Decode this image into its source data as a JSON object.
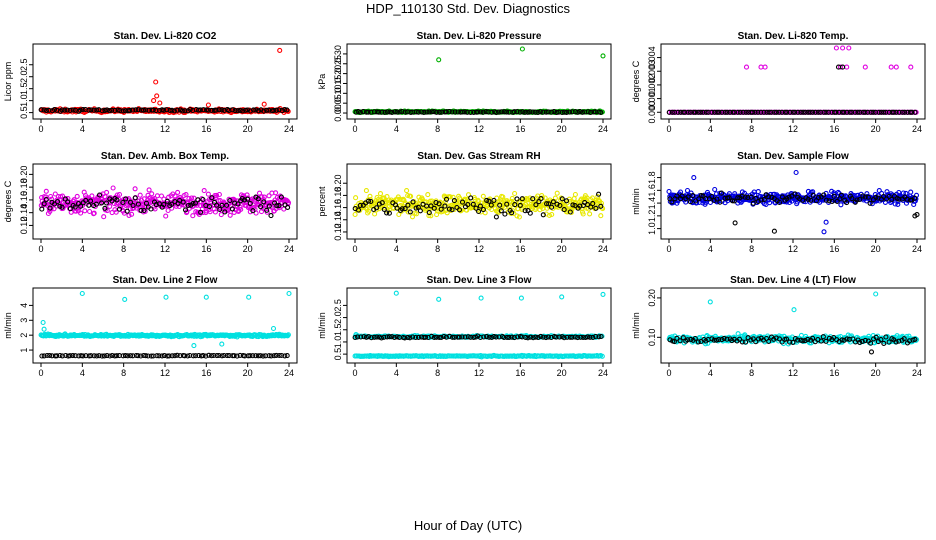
{
  "page": {
    "title": "HDP_110130  Std. Dev. Diagnostics",
    "xlabel": "Hour of Day (UTC)"
  },
  "chart_data": [
    {
      "type": "scatter",
      "title": "Stan. Dev. Li-820 CO2",
      "ylabel": "Licor ppm",
      "xlim": [
        0,
        24
      ],
      "ylim": [
        0.4,
        3.2
      ],
      "xticks": [
        "0",
        "4",
        "8",
        "12",
        "16",
        "20",
        "24"
      ],
      "yticks": [
        "0.5",
        "1.0",
        "1.5",
        "2.0",
        "2.5"
      ],
      "series": [
        {
          "color": "#ff0000",
          "base": 0.58,
          "spread": 0.12,
          "n": 300,
          "outliers": [
            [
              11.1,
              1.78
            ],
            [
              11.2,
              1.2
            ],
            [
              10.9,
              1.0
            ],
            [
              11.5,
              0.9
            ],
            [
              16.2,
              0.82
            ],
            [
              21.6,
              0.85
            ],
            [
              23.1,
              3.1
            ]
          ]
        },
        {
          "color": "#000000",
          "base": 0.6,
          "spread": 0.06,
          "n": 95,
          "outliers": []
        }
      ]
    },
    {
      "type": "scatter",
      "title": "Stan. Dev. Li-820 Pressure",
      "ylabel": "kPa",
      "xlim": [
        0,
        24
      ],
      "ylim": [
        -0.01,
        0.33
      ],
      "xticks": [
        "0",
        "4",
        "8",
        "12",
        "16",
        "20",
        "24"
      ],
      "yticks": [
        "0.00",
        "0.05",
        "0.10",
        "0.15",
        "0.20",
        "0.25",
        "0.30"
      ],
      "series": [
        {
          "color": "#00b000",
          "base": 0.006,
          "spread": 0.006,
          "n": 300,
          "outliers": [
            [
              8.1,
              0.27
            ],
            [
              16.2,
              0.325
            ],
            [
              24,
              0.29
            ]
          ]
        },
        {
          "color": "#000000",
          "base": 0.005,
          "spread": 0.004,
          "n": 95,
          "outliers": []
        }
      ]
    },
    {
      "type": "scatter",
      "title": "Stan. Dev. Li-820 Temp.",
      "ylabel": "degrees C",
      "xlim": [
        0,
        24
      ],
      "ylim": [
        -0.0002,
        0.0047
      ],
      "xticks": [
        "0",
        "4",
        "8",
        "12",
        "16",
        "20",
        "24"
      ],
      "yticks": [
        "0.000",
        "0.001",
        "0.002",
        "0.003",
        "0.004"
      ],
      "series": [
        {
          "color": "#e000e0",
          "base": 0.0,
          "spread": 0.0,
          "n": 160,
          "outliers": [
            [
              7.5,
              0.0033
            ],
            [
              8.9,
              0.0033
            ],
            [
              9.3,
              0.0033
            ],
            [
              16.2,
              0.0047
            ],
            [
              16.6,
              0.0033
            ],
            [
              17.2,
              0.0033
            ],
            [
              17.4,
              0.0047
            ],
            [
              19.0,
              0.0033
            ],
            [
              21.5,
              0.0033
            ],
            [
              22.0,
              0.0033
            ],
            [
              23.4,
              0.0033
            ],
            [
              16.8,
              0.0047
            ]
          ]
        },
        {
          "color": "#000000",
          "base": 0.0,
          "spread": 0.0,
          "n": 95,
          "outliers": [
            [
              16.4,
              0.0033
            ],
            [
              16.8,
              0.0033
            ]
          ]
        }
      ]
    },
    {
      "type": "scatter",
      "title": "Stan. Dev. Amb. Box Temp.",
      "ylabel": "degrees C",
      "xlim": [
        0,
        24
      ],
      "ylim": [
        0.105,
        0.21
      ],
      "xticks": [
        "0",
        "4",
        "8",
        "12",
        "16",
        "20",
        "24"
      ],
      "yticks": [
        "0.12",
        "0.14",
        "0.16",
        "0.18",
        "0.20"
      ],
      "series": [
        {
          "color": "#e000e0",
          "base": 0.155,
          "spread": 0.028,
          "n": 420,
          "outliers": []
        },
        {
          "color": "#000000",
          "base": 0.152,
          "spread": 0.022,
          "n": 95,
          "outliers": []
        }
      ]
    },
    {
      "type": "scatter",
      "title": "Stan. Dev. Gas Stream RH",
      "ylabel": "percent",
      "xlim": [
        0,
        24
      ],
      "ylim": [
        0.115,
        0.225
      ],
      "xticks": [
        "0",
        "4",
        "8",
        "12",
        "16",
        "20",
        "24"
      ],
      "yticks": [
        "0.12",
        "0.14",
        "0.16",
        "0.18",
        "0.20"
      ],
      "series": [
        {
          "color": "#e8e800",
          "base": 0.165,
          "spread": 0.028,
          "n": 420,
          "outliers": []
        },
        {
          "color": "#000000",
          "base": 0.163,
          "spread": 0.024,
          "n": 95,
          "outliers": []
        }
      ]
    },
    {
      "type": "scatter",
      "title": "Stan. Dev. Sample Flow",
      "ylabel": "ml/min",
      "xlim": [
        0,
        24
      ],
      "ylim": [
        0.9,
        1.95
      ],
      "xticks": [
        "0",
        "4",
        "8",
        "12",
        "16",
        "20",
        "24"
      ],
      "yticks": [
        "1.0",
        "1.2",
        "1.4",
        "1.6",
        "1.8"
      ],
      "series": [
        {
          "color": "#0000e0",
          "base": 1.48,
          "spread": 0.16,
          "n": 420,
          "outliers": [
            [
              12.3,
              1.88
            ],
            [
              15.2,
              1.1
            ],
            [
              15.0,
              0.95
            ],
            [
              2.4,
              1.8
            ]
          ]
        },
        {
          "color": "#000000",
          "base": 1.47,
          "spread": 0.12,
          "n": 95,
          "outliers": [
            [
              10.2,
              0.96
            ],
            [
              6.4,
              1.09
            ],
            [
              23.8,
              1.2
            ],
            [
              24,
              1.22
            ]
          ]
        }
      ]
    },
    {
      "type": "scatter",
      "title": "Stan. Dev. Line 2 Flow",
      "ylabel": "ml/min",
      "xlim": [
        0,
        24
      ],
      "ylim": [
        0.4,
        4.9
      ],
      "xticks": [
        "0",
        "4",
        "8",
        "12",
        "16",
        "20",
        "24"
      ],
      "yticks": [
        "1",
        "2",
        "3",
        "4"
      ],
      "series": [
        {
          "color": "#00e0e0",
          "base": 1.98,
          "spread": 0.12,
          "n": 300,
          "outliers": [
            [
              0.2,
              2.85
            ],
            [
              4.0,
              4.8
            ],
            [
              8.1,
              4.4
            ],
            [
              12.1,
              4.55
            ],
            [
              16.0,
              4.55
            ],
            [
              20.1,
              4.55
            ],
            [
              24,
              4.8
            ],
            [
              22.5,
              2.45
            ],
            [
              14.8,
              1.3
            ],
            [
              17.5,
              1.4
            ],
            [
              0.3,
              2.4
            ]
          ]
        },
        {
          "color": "#000000",
          "base": 0.62,
          "spread": 0.05,
          "n": 95,
          "outliers": []
        }
      ]
    },
    {
      "type": "scatter",
      "title": "Stan. Dev. Line 3 Flow",
      "ylabel": "ml/min",
      "xlim": [
        0,
        24
      ],
      "ylim": [
        0.3,
        3.05
      ],
      "xticks": [
        "0",
        "4",
        "8",
        "12",
        "16",
        "20",
        "24"
      ],
      "yticks": [
        "0.5",
        "1.0",
        "1.5",
        "2.0",
        "2.5"
      ],
      "series": [
        {
          "color": "#00e0e0",
          "base": 1.22,
          "spread": 0.06,
          "n": 200,
          "outliers": [
            [
              4.0,
              3.0
            ],
            [
              8.1,
              2.75
            ],
            [
              12.2,
              2.8
            ],
            [
              16.1,
              2.8
            ],
            [
              20.0,
              2.85
            ],
            [
              24,
              2.95
            ],
            [
              0.1,
              1.3
            ]
          ]
        },
        {
          "color": "#00e0e0",
          "base": 0.42,
          "spread": 0.04,
          "n": 200,
          "outliers": []
        },
        {
          "color": "#000000",
          "base": 1.2,
          "spread": 0.05,
          "n": 95,
          "outliers": []
        }
      ]
    },
    {
      "type": "scatter",
      "title": "Stan. Dev. Line 4 (LT) Flow",
      "ylabel": "ml/min",
      "xlim": [
        0,
        24
      ],
      "ylim": [
        0.045,
        0.215
      ],
      "xticks": [
        "0",
        "4",
        "8",
        "12",
        "16",
        "20",
        "24"
      ],
      "yticks": [
        "0.10",
        "0.20"
      ],
      "series": [
        {
          "color": "#00e0e0",
          "base": 0.095,
          "spread": 0.016,
          "n": 360,
          "outliers": [
            [
              4.0,
              0.19
            ],
            [
              12.1,
              0.17
            ],
            [
              20.0,
              0.21
            ]
          ]
        },
        {
          "color": "#000000",
          "base": 0.093,
          "spread": 0.014,
          "n": 95,
          "outliers": [
            [
              19.6,
              0.063
            ]
          ]
        }
      ]
    }
  ]
}
